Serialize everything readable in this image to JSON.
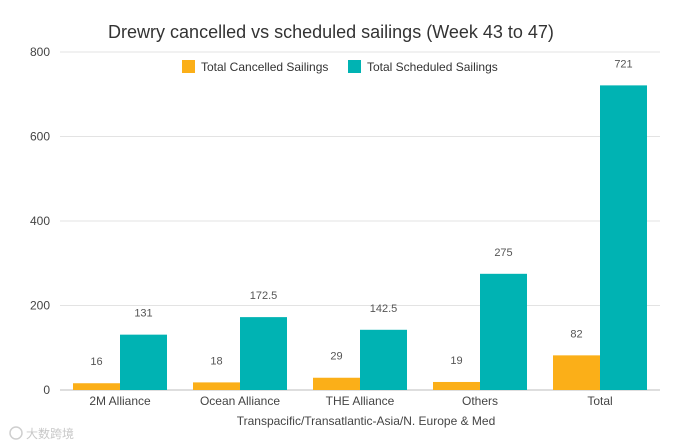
{
  "chart_data": {
    "type": "bar",
    "title": "Drewry cancelled vs scheduled sailings (Week 43 to 47)",
    "xlabel": "Transpacific/Transatlantic-Asia/N. Europe & Med",
    "ylabel": "",
    "ylim": [
      0,
      800
    ],
    "yticks": [
      0,
      200,
      400,
      600,
      800
    ],
    "grid": true,
    "legend_position": "top-center",
    "categories": [
      "2M Alliance",
      "Ocean Alliance",
      "THE Alliance",
      "Others",
      "Total"
    ],
    "series": [
      {
        "name": "Total Cancelled Sailings",
        "color": "#FBAF18",
        "values": [
          16,
          18,
          29,
          19,
          82
        ],
        "labels": [
          "16",
          "18",
          "29",
          "19",
          "82"
        ]
      },
      {
        "name": "Total Scheduled Sailings",
        "color": "#00B3B3",
        "values": [
          131,
          172.5,
          142.5,
          275,
          721
        ],
        "labels": [
          "131",
          "172.5",
          "142.5",
          "275",
          "721"
        ]
      }
    ]
  },
  "watermark": {
    "text": "大数跨境"
  }
}
